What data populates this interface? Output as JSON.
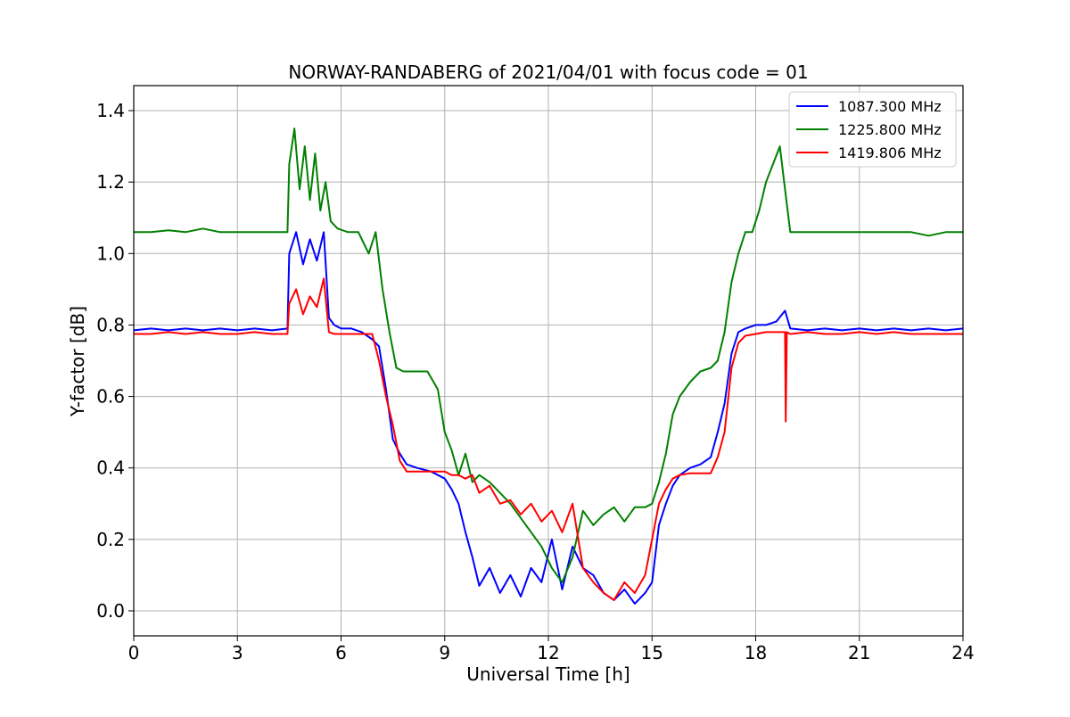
{
  "chart_data": {
    "type": "line",
    "title": "NORWAY-RANDABERG of 2021/04/01 with focus code = 01",
    "xlabel": "Universal Time [h]",
    "ylabel": "Y-factor [dB]",
    "xlim": [
      0,
      24
    ],
    "ylim": [
      -0.07,
      1.47
    ],
    "xticks": [
      0,
      3,
      6,
      9,
      12,
      15,
      18,
      21,
      24
    ],
    "yticks": [
      0.0,
      0.2,
      0.4,
      0.6,
      0.8,
      1.0,
      1.2,
      1.4
    ],
    "xtick_labels": [
      "0",
      "3",
      "6",
      "9",
      "12",
      "15",
      "18",
      "21",
      "24"
    ],
    "ytick_labels": [
      "0.0",
      "0.2",
      "0.4",
      "0.6",
      "0.8",
      "1.0",
      "1.2",
      "1.4"
    ],
    "grid": true,
    "legend_position": "top-right",
    "series": [
      {
        "name": "1087.300 MHz",
        "color": "#0000ff",
        "x": [
          0,
          0.5,
          1,
          1.5,
          2,
          2.5,
          3,
          3.5,
          4,
          4.45,
          4.5,
          4.7,
          4.9,
          5.1,
          5.3,
          5.5,
          5.65,
          5.8,
          6.0,
          6.3,
          6.6,
          6.9,
          7.1,
          7.3,
          7.5,
          7.7,
          7.9,
          8.2,
          8.6,
          9.0,
          9.2,
          9.4,
          9.6,
          9.8,
          10.0,
          10.3,
          10.6,
          10.9,
          11.2,
          11.5,
          11.8,
          12.1,
          12.4,
          12.7,
          13.0,
          13.3,
          13.6,
          13.9,
          14.2,
          14.5,
          14.8,
          15.0,
          15.2,
          15.4,
          15.6,
          15.8,
          16.1,
          16.4,
          16.7,
          16.9,
          17.1,
          17.3,
          17.5,
          17.7,
          18.0,
          18.3,
          18.6,
          18.85,
          19.0,
          19.5,
          20.0,
          20.5,
          21.0,
          21.5,
          22.0,
          22.5,
          23.0,
          23.5,
          24.0
        ],
        "y": [
          0.785,
          0.79,
          0.785,
          0.79,
          0.785,
          0.79,
          0.785,
          0.79,
          0.785,
          0.79,
          1.0,
          1.06,
          0.97,
          1.04,
          0.98,
          1.06,
          0.82,
          0.8,
          0.79,
          0.79,
          0.78,
          0.76,
          0.74,
          0.62,
          0.48,
          0.44,
          0.41,
          0.4,
          0.39,
          0.37,
          0.34,
          0.3,
          0.22,
          0.15,
          0.07,
          0.12,
          0.05,
          0.1,
          0.04,
          0.12,
          0.08,
          0.2,
          0.06,
          0.18,
          0.12,
          0.1,
          0.05,
          0.03,
          0.06,
          0.02,
          0.05,
          0.08,
          0.24,
          0.3,
          0.35,
          0.38,
          0.4,
          0.41,
          0.43,
          0.5,
          0.58,
          0.72,
          0.78,
          0.79,
          0.8,
          0.8,
          0.81,
          0.84,
          0.79,
          0.785,
          0.79,
          0.785,
          0.79,
          0.785,
          0.79,
          0.785,
          0.79,
          0.785,
          0.79
        ]
      },
      {
        "name": "1225.800 MHz",
        "color": "#008000",
        "x": [
          0,
          0.5,
          1,
          1.5,
          2,
          2.5,
          3,
          3.5,
          4,
          4.45,
          4.5,
          4.65,
          4.8,
          4.95,
          5.1,
          5.25,
          5.4,
          5.55,
          5.7,
          5.9,
          6.2,
          6.5,
          6.8,
          7.0,
          7.2,
          7.4,
          7.6,
          7.8,
          8.1,
          8.5,
          8.8,
          9.0,
          9.2,
          9.4,
          9.6,
          9.8,
          10.0,
          10.3,
          10.6,
          10.9,
          11.2,
          11.5,
          11.8,
          12.1,
          12.4,
          12.7,
          13.0,
          13.3,
          13.6,
          13.9,
          14.2,
          14.5,
          14.8,
          15.0,
          15.2,
          15.4,
          15.6,
          15.8,
          16.1,
          16.4,
          16.7,
          16.9,
          17.1,
          17.3,
          17.5,
          17.7,
          17.9,
          18.1,
          18.3,
          18.5,
          18.7,
          18.85,
          19.0,
          19.5,
          20.0,
          20.5,
          21.0,
          21.5,
          22.0,
          22.5,
          23.0,
          23.5,
          24.0
        ],
        "y": [
          1.06,
          1.06,
          1.065,
          1.06,
          1.07,
          1.06,
          1.06,
          1.06,
          1.06,
          1.06,
          1.25,
          1.35,
          1.18,
          1.3,
          1.15,
          1.28,
          1.12,
          1.2,
          1.09,
          1.07,
          1.06,
          1.06,
          1.0,
          1.06,
          0.9,
          0.78,
          0.68,
          0.67,
          0.67,
          0.67,
          0.62,
          0.5,
          0.45,
          0.38,
          0.44,
          0.36,
          0.38,
          0.36,
          0.33,
          0.3,
          0.26,
          0.22,
          0.18,
          0.12,
          0.08,
          0.15,
          0.28,
          0.24,
          0.27,
          0.29,
          0.25,
          0.29,
          0.29,
          0.3,
          0.36,
          0.44,
          0.55,
          0.6,
          0.64,
          0.67,
          0.68,
          0.7,
          0.78,
          0.92,
          1.0,
          1.06,
          1.06,
          1.12,
          1.2,
          1.25,
          1.3,
          1.18,
          1.06,
          1.06,
          1.06,
          1.06,
          1.06,
          1.06,
          1.06,
          1.06,
          1.05,
          1.06,
          1.06
        ]
      },
      {
        "name": "1419.806 MHz",
        "color": "#ff0000",
        "x": [
          0,
          0.5,
          1,
          1.5,
          2,
          2.5,
          3,
          3.5,
          4,
          4.45,
          4.5,
          4.7,
          4.9,
          5.1,
          5.3,
          5.5,
          5.65,
          5.8,
          6.0,
          6.3,
          6.6,
          6.9,
          7.1,
          7.3,
          7.5,
          7.7,
          7.9,
          8.2,
          8.6,
          9.0,
          9.2,
          9.4,
          9.6,
          9.8,
          10.0,
          10.3,
          10.6,
          10.9,
          11.2,
          11.5,
          11.8,
          12.1,
          12.4,
          12.7,
          13.0,
          13.3,
          13.6,
          13.9,
          14.2,
          14.5,
          14.8,
          15.0,
          15.2,
          15.4,
          15.6,
          15.8,
          16.1,
          16.4,
          16.7,
          16.9,
          17.1,
          17.3,
          17.5,
          17.7,
          18.0,
          18.3,
          18.6,
          18.85,
          18.87,
          18.9,
          19.0,
          19.5,
          20.0,
          20.5,
          21.0,
          21.5,
          22.0,
          22.5,
          23.0,
          23.5,
          24.0
        ],
        "y": [
          0.775,
          0.775,
          0.78,
          0.775,
          0.78,
          0.775,
          0.775,
          0.78,
          0.775,
          0.775,
          0.86,
          0.9,
          0.83,
          0.88,
          0.85,
          0.93,
          0.78,
          0.775,
          0.775,
          0.775,
          0.775,
          0.775,
          0.7,
          0.6,
          0.52,
          0.42,
          0.39,
          0.39,
          0.39,
          0.39,
          0.38,
          0.38,
          0.37,
          0.38,
          0.33,
          0.35,
          0.3,
          0.31,
          0.27,
          0.3,
          0.25,
          0.28,
          0.22,
          0.3,
          0.12,
          0.08,
          0.05,
          0.03,
          0.08,
          0.05,
          0.1,
          0.2,
          0.3,
          0.34,
          0.37,
          0.38,
          0.385,
          0.385,
          0.385,
          0.43,
          0.5,
          0.68,
          0.75,
          0.77,
          0.775,
          0.78,
          0.78,
          0.78,
          0.53,
          0.78,
          0.775,
          0.78,
          0.775,
          0.775,
          0.78,
          0.775,
          0.78,
          0.775,
          0.775,
          0.775,
          0.775
        ]
      }
    ]
  }
}
